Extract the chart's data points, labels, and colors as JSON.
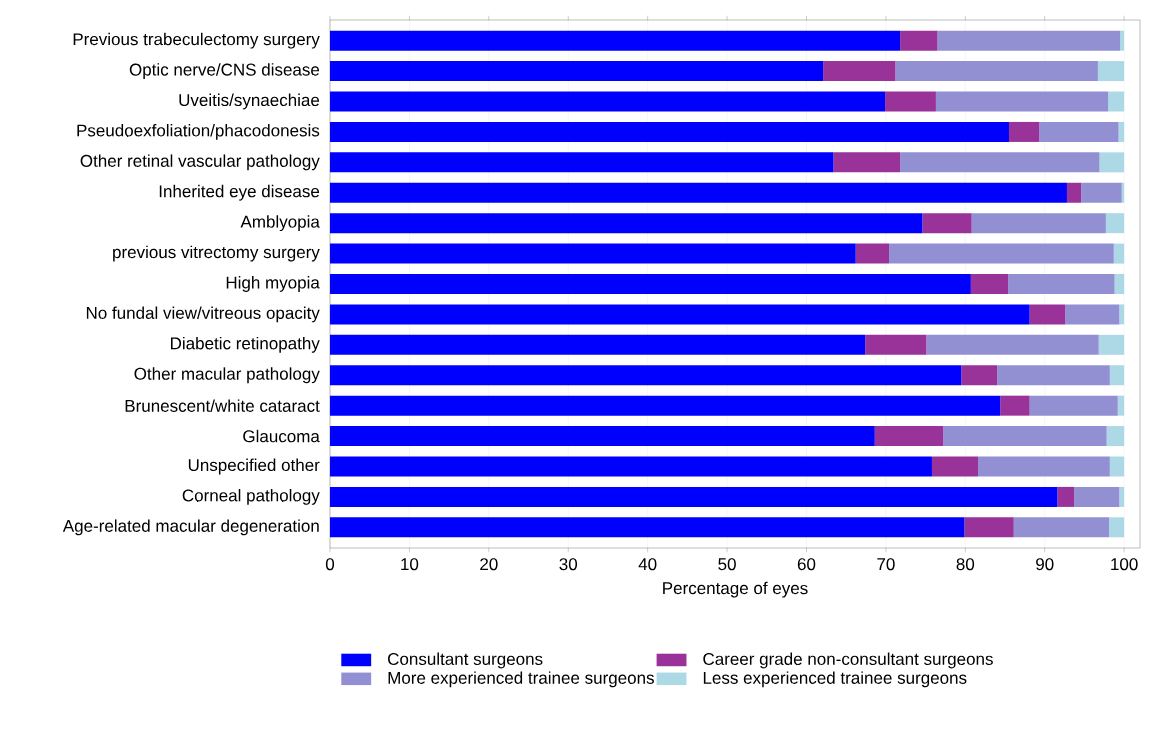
{
  "chart_data": {
    "type": "bar",
    "orientation": "horizontal",
    "stacked": true,
    "xlabel": "Percentage of eyes",
    "categories": [
      "Previous trabeculectomy surgery",
      "Optic nerve/CNS disease",
      "Uveitis/synaechiae",
      "Pseudoexfoliation/phacodonesis",
      "Other retinal vascular pathology",
      "Inherited eye disease",
      "Amblyopia",
      "previous vitrectomy surgery",
      "High myopia",
      "No fundal view/vitreous opacity",
      "Diabetic retinopathy",
      "Other macular pathology",
      "Brunescent/white cataract",
      "Glaucoma",
      "Unspecified other",
      "Corneal pathology",
      "Age-related macular degeneration"
    ],
    "series": [
      {
        "name": "Consultant surgeons",
        "color": "#0000ff",
        "values": [
          71.8,
          62.1,
          69.9,
          85.5,
          63.4,
          92.8,
          74.6,
          66.2,
          80.7,
          88.1,
          67.4,
          79.5,
          84.4,
          68.6,
          75.8,
          91.6,
          79.9
        ]
      },
      {
        "name": "Career grade non-consultant surgeons",
        "color": "#993399",
        "values": [
          4.7,
          9.1,
          6.4,
          3.8,
          8.4,
          1.8,
          6.2,
          4.2,
          4.7,
          4.5,
          7.7,
          4.5,
          3.7,
          8.6,
          5.8,
          2.1,
          6.2
        ]
      },
      {
        "name": "More experienced trainee surgeons",
        "color": "#9290d3",
        "values": [
          23.0,
          25.5,
          21.7,
          10.0,
          25.1,
          5.1,
          16.9,
          28.3,
          13.4,
          6.8,
          21.7,
          14.2,
          11.1,
          20.6,
          16.6,
          5.7,
          12.0
        ]
      },
      {
        "name": "Less experienced trainee surgeons",
        "color": "#add8e6",
        "values": [
          0.5,
          3.3,
          2.0,
          0.7,
          3.1,
          0.3,
          2.3,
          1.3,
          1.2,
          0.6,
          3.2,
          1.8,
          0.8,
          2.2,
          1.8,
          0.6,
          1.9
        ]
      }
    ],
    "xlim": [
      0,
      102
    ],
    "xticks": [
      0,
      10,
      20,
      30,
      40,
      50,
      60,
      70,
      80,
      90,
      100
    ],
    "grid": "x",
    "legend": "bottom"
  }
}
